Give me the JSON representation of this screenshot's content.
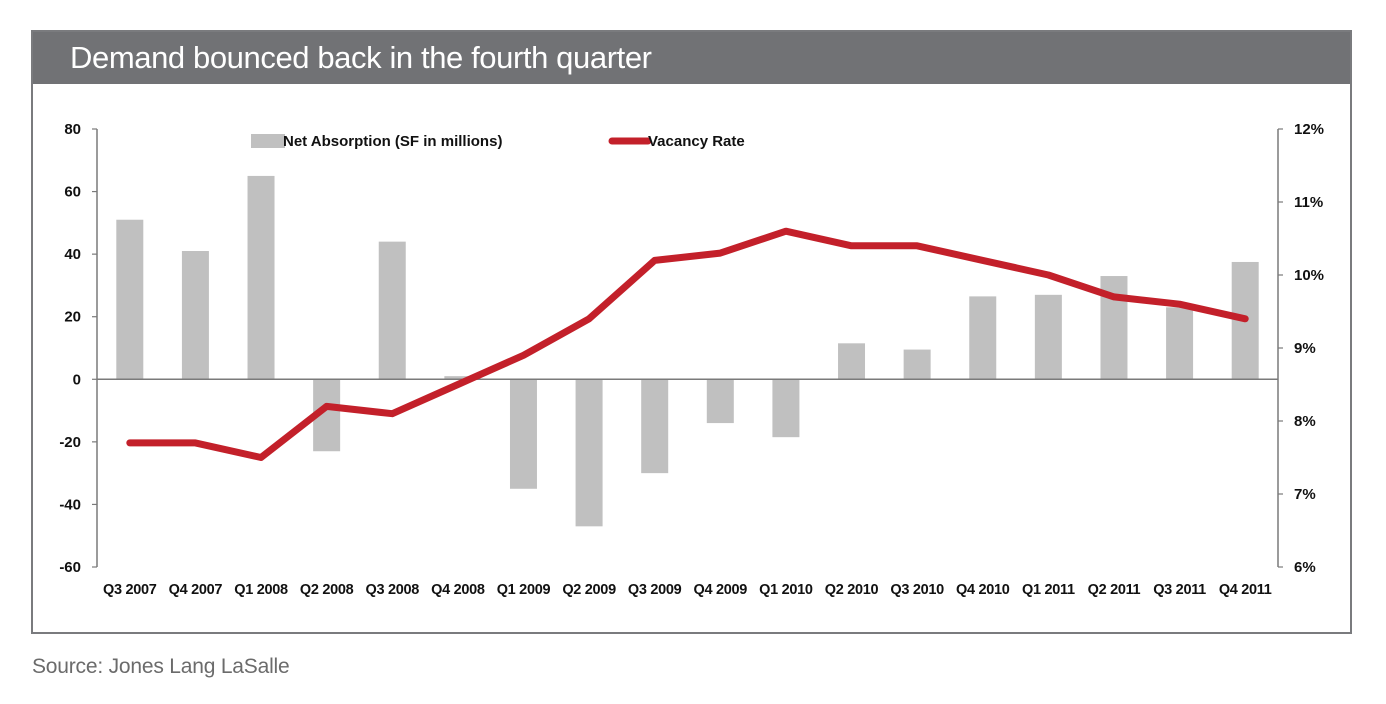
{
  "title": "Demand bounced back in the fourth quarter",
  "source": "Source: Jones Lang LaSalle",
  "chart_data": {
    "type": "bar+line",
    "title": "Demand bounced back in the fourth quarter",
    "categories": [
      "Q3 2007",
      "Q4 2007",
      "Q1 2008",
      "Q2 2008",
      "Q3 2008",
      "Q4 2008",
      "Q1 2009",
      "Q2 2009",
      "Q3 2009",
      "Q4 2009",
      "Q1 2010",
      "Q2 2010",
      "Q3 2010",
      "Q4 2010",
      "Q1 2011",
      "Q2 2011",
      "Q3 2011",
      "Q4 2011"
    ],
    "series": [
      {
        "name": "Net Absorption (SF in millions)",
        "type": "bar",
        "axis": "left",
        "color": "#c0c0c0",
        "values": [
          51,
          41,
          65,
          -23,
          44,
          1,
          -35,
          -47,
          -30,
          -14,
          -18.5,
          11.5,
          9.5,
          26.5,
          27,
          33,
          23,
          37.5
        ]
      },
      {
        "name": "Vacancy Rate",
        "type": "line",
        "axis": "right",
        "color": "#c3202a",
        "values": [
          7.7,
          7.7,
          7.5,
          8.2,
          8.1,
          8.5,
          8.9,
          9.4,
          10.2,
          10.3,
          10.6,
          10.4,
          10.4,
          10.2,
          10.0,
          9.7,
          9.6,
          9.4
        ]
      }
    ],
    "y_left": {
      "ylim": [
        -60,
        80
      ],
      "ticks": [
        "80",
        "60",
        "40",
        "20",
        "0",
        "-20",
        "-40",
        "-60"
      ]
    },
    "y_right": {
      "ylim": [
        6,
        12
      ],
      "ticks": [
        "12%",
        "11%",
        "10%",
        "9%",
        "8%",
        "7%",
        "6%"
      ]
    },
    "legend_position": "top",
    "grid": false
  }
}
